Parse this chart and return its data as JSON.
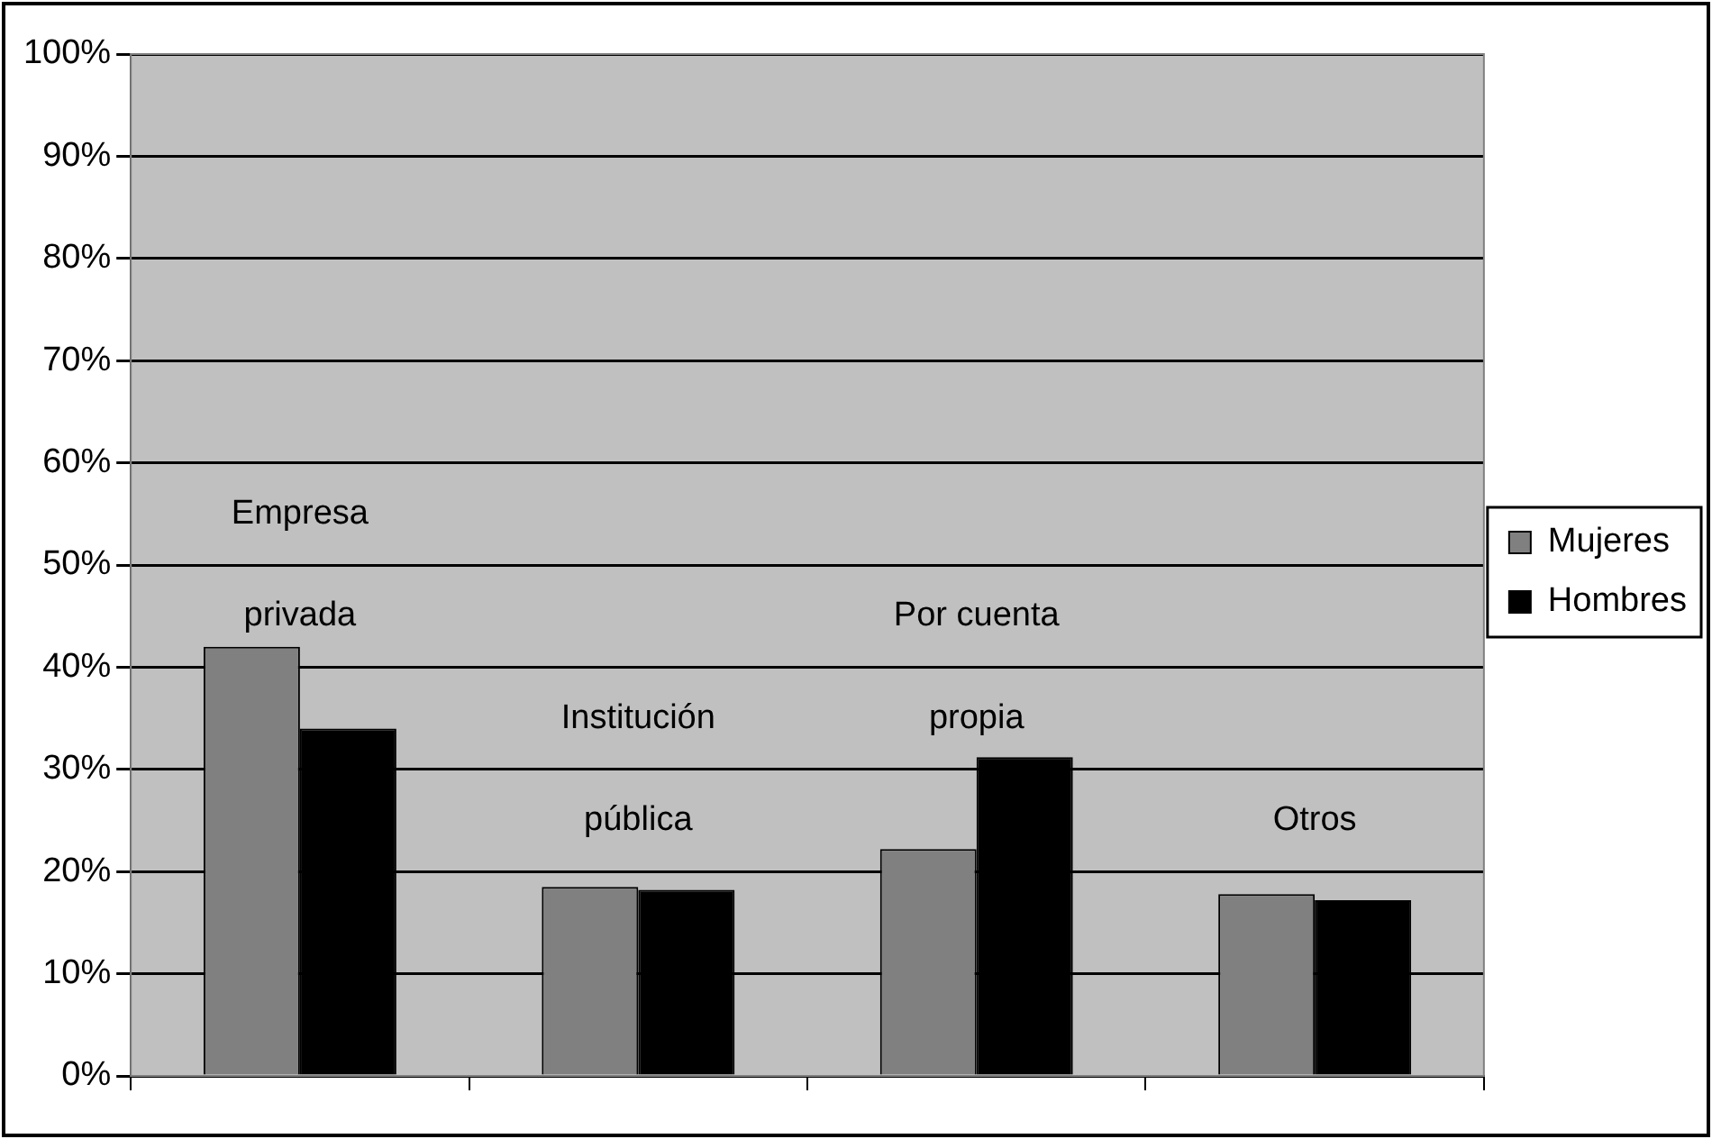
{
  "chart_data": {
    "type": "bar",
    "categories": [
      "Empresa privada",
      "Institución pública",
      "Por cuenta propia",
      "Otros"
    ],
    "series": [
      {
        "name": "Mujeres",
        "color": "#808080",
        "values": [
          42,
          18.5,
          22.2,
          17.8
        ]
      },
      {
        "name": "Hombres",
        "color": "#000000",
        "values": [
          34,
          18.2,
          31.2,
          17.2
        ]
      }
    ],
    "ylim": [
      0,
      100
    ],
    "yticks": [
      {
        "value": 0,
        "label": "0%"
      },
      {
        "value": 10,
        "label": "10%"
      },
      {
        "value": 20,
        "label": "20%"
      },
      {
        "value": 30,
        "label": "30%"
      },
      {
        "value": 40,
        "label": "40%"
      },
      {
        "value": 50,
        "label": "50%"
      },
      {
        "value": 60,
        "label": "60%"
      },
      {
        "value": 70,
        "label": "70%"
      },
      {
        "value": 80,
        "label": "80%"
      },
      {
        "value": 90,
        "label": "90%"
      },
      {
        "value": 100,
        "label": "100%"
      }
    ],
    "grid": "y",
    "legend": "right",
    "tick_labels": "y"
  }
}
